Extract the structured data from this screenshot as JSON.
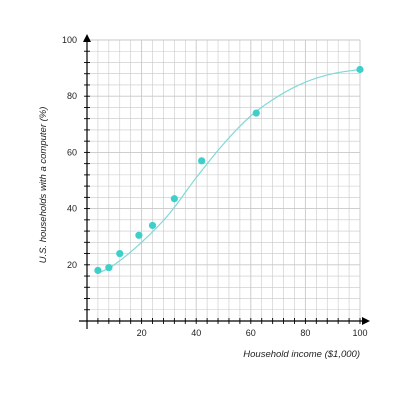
{
  "chart_data": {
    "type": "scatter",
    "title": "",
    "xlabel": "Household income ($1,000)",
    "ylabel": "U.S. households with a computer (%)",
    "xlim": [
      0,
      100
    ],
    "ylim": [
      0,
      100
    ],
    "x_ticks": [
      20,
      40,
      60,
      80,
      100
    ],
    "y_ticks": [
      20,
      40,
      60,
      80,
      100
    ],
    "grid": true,
    "series": [
      {
        "points": [
          {
            "x": 4,
            "y": 18
          },
          {
            "x": 8,
            "y": 19
          },
          {
            "x": 12,
            "y": 24
          },
          {
            "x": 19,
            "y": 30.5
          },
          {
            "x": 24,
            "y": 34
          },
          {
            "x": 32,
            "y": 43.5
          },
          {
            "x": 42,
            "y": 57
          },
          {
            "x": 62,
            "y": 74
          },
          {
            "x": 100,
            "y": 89.5
          }
        ]
      }
    ],
    "fit_curve": [
      {
        "x": 4,
        "y": 17
      },
      {
        "x": 10,
        "y": 20
      },
      {
        "x": 20,
        "y": 28
      },
      {
        "x": 30,
        "y": 38
      },
      {
        "x": 40,
        "y": 51
      },
      {
        "x": 50,
        "y": 63
      },
      {
        "x": 60,
        "y": 73
      },
      {
        "x": 70,
        "y": 80
      },
      {
        "x": 80,
        "y": 85
      },
      {
        "x": 90,
        "y": 88
      },
      {
        "x": 100,
        "y": 89.5
      }
    ],
    "colors": {
      "points": "#3ecfca",
      "curve": "#7fd9d6",
      "grid": "#c8c8c8",
      "axis": "#000000"
    }
  }
}
